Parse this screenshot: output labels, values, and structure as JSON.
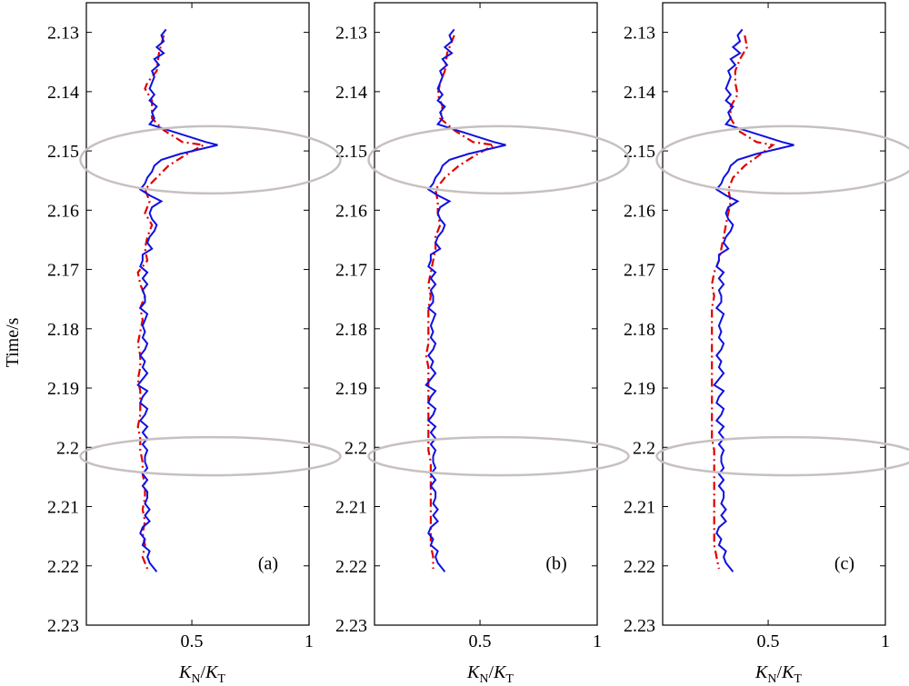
{
  "chart_data": {
    "type": "line",
    "ylabel": "Time/s",
    "xlabel_main": "K",
    "xlabel_num_sub": "N",
    "xlabel_den_sub": "T",
    "ylim": [
      2.125,
      2.23
    ],
    "yticks": [
      "2.13",
      "2.14",
      "2.15",
      "2.16",
      "2.17",
      "2.18",
      "2.19",
      "2.2",
      "2.21",
      "2.22",
      "2.23"
    ],
    "yticks_values": [
      2.13,
      2.14,
      2.15,
      2.16,
      2.17,
      2.18,
      2.19,
      2.2,
      2.21,
      2.22,
      2.23
    ],
    "xlim": [
      0.05,
      1.0
    ],
    "xticks": [
      "0.5",
      "1"
    ],
    "xticks_values": [
      0.5,
      1.0
    ],
    "colors": {
      "blue_series": "#1010e0",
      "red_series": "#e00000",
      "ellipse": "#c8c0c0"
    },
    "panels": [
      {
        "tag": "(a)",
        "blue": {
          "t": [
            2.1295,
            2.1305,
            2.1315,
            2.1325,
            2.1335,
            2.1345,
            2.1355,
            2.1365,
            2.1375,
            2.1385,
            2.1395,
            2.1405,
            2.1415,
            2.1425,
            2.1435,
            2.1445,
            2.1455,
            2.1465,
            2.1475,
            2.1485,
            2.149,
            2.1505,
            2.1515,
            2.1525,
            2.1535,
            2.1545,
            2.1555,
            2.1565,
            2.1575,
            2.1585,
            2.1595,
            2.1605,
            2.1615,
            2.1625,
            2.1635,
            2.1645,
            2.1655,
            2.1665,
            2.1675,
            2.1685,
            2.1695,
            2.1705,
            2.1715,
            2.1725,
            2.1735,
            2.1745,
            2.1755,
            2.1765,
            2.1775,
            2.1785,
            2.1795,
            2.1805,
            2.1815,
            2.1825,
            2.1835,
            2.1845,
            2.1855,
            2.1865,
            2.1875,
            2.1885,
            2.1895,
            2.1905,
            2.1915,
            2.1925,
            2.1935,
            2.1945,
            2.1955,
            2.1965,
            2.1975,
            2.1985,
            2.1995,
            2.2005,
            2.2015,
            2.2025,
            2.2035,
            2.2045,
            2.2055,
            2.2065,
            2.2075,
            2.2085,
            2.2095,
            2.2105,
            2.2115,
            2.2125,
            2.2135,
            2.2145,
            2.2155,
            2.2165,
            2.2175,
            2.2185,
            2.2195,
            2.221
          ],
          "k": [
            0.39,
            0.37,
            0.38,
            0.35,
            0.38,
            0.34,
            0.36,
            0.33,
            0.34,
            0.33,
            0.32,
            0.34,
            0.32,
            0.35,
            0.33,
            0.34,
            0.32,
            0.4,
            0.48,
            0.56,
            0.61,
            0.45,
            0.37,
            0.34,
            0.33,
            0.31,
            0.3,
            0.28,
            0.32,
            0.37,
            0.33,
            0.32,
            0.33,
            0.35,
            0.34,
            0.32,
            0.31,
            0.33,
            0.29,
            0.29,
            0.28,
            0.31,
            0.29,
            0.31,
            0.29,
            0.3,
            0.3,
            0.28,
            0.31,
            0.3,
            0.29,
            0.3,
            0.29,
            0.31,
            0.3,
            0.28,
            0.3,
            0.29,
            0.31,
            0.29,
            0.27,
            0.31,
            0.29,
            0.28,
            0.31,
            0.3,
            0.28,
            0.31,
            0.29,
            0.31,
            0.29,
            0.31,
            0.3,
            0.3,
            0.31,
            0.29,
            0.31,
            0.29,
            0.31,
            0.31,
            0.3,
            0.32,
            0.3,
            0.32,
            0.29,
            0.28,
            0.3,
            0.29,
            0.32,
            0.31,
            0.32,
            0.35
          ]
        },
        "red": {
          "t": [
            2.1305,
            2.1335,
            2.1365,
            2.1385,
            2.1395,
            2.1415,
            2.1445,
            2.1465,
            2.1485,
            2.149,
            2.1505,
            2.1525,
            2.1545,
            2.1565,
            2.1585,
            2.1605,
            2.1625,
            2.1645,
            2.1665,
            2.1685,
            2.1705,
            2.1725,
            2.1745,
            2.1765,
            2.1785,
            2.1805,
            2.1825,
            2.1845,
            2.1865,
            2.1885,
            2.1905,
            2.1925,
            2.1945,
            2.1965,
            2.1985,
            2.2005,
            2.2025,
            2.2045,
            2.2065,
            2.2085,
            2.2105,
            2.2125,
            2.2145,
            2.2165,
            2.2185,
            2.2205
          ],
          "k": [
            0.38,
            0.36,
            0.35,
            0.31,
            0.3,
            0.33,
            0.33,
            0.38,
            0.46,
            0.55,
            0.48,
            0.4,
            0.35,
            0.3,
            0.32,
            0.3,
            0.33,
            0.31,
            0.3,
            0.31,
            0.27,
            0.28,
            0.3,
            0.28,
            0.29,
            0.28,
            0.27,
            0.28,
            0.28,
            0.27,
            0.28,
            0.28,
            0.28,
            0.27,
            0.28,
            0.28,
            0.29,
            0.29,
            0.3,
            0.3,
            0.29,
            0.3,
            0.29,
            0.3,
            0.29,
            0.31
          ]
        }
      },
      {
        "tag": "(b)",
        "blue": {
          "t": [
            2.1295,
            2.1305,
            2.1315,
            2.1325,
            2.1335,
            2.1345,
            2.1355,
            2.1365,
            2.1375,
            2.1385,
            2.1395,
            2.1405,
            2.1415,
            2.1425,
            2.1435,
            2.1445,
            2.1455,
            2.1465,
            2.1475,
            2.1485,
            2.149,
            2.1505,
            2.1515,
            2.1525,
            2.1535,
            2.1545,
            2.1555,
            2.1565,
            2.1575,
            2.1585,
            2.1595,
            2.1605,
            2.1615,
            2.1625,
            2.1635,
            2.1645,
            2.1655,
            2.1665,
            2.1675,
            2.1685,
            2.1695,
            2.1705,
            2.1715,
            2.1725,
            2.1735,
            2.1745,
            2.1755,
            2.1765,
            2.1775,
            2.1785,
            2.1795,
            2.1805,
            2.1815,
            2.1825,
            2.1835,
            2.1845,
            2.1855,
            2.1865,
            2.1875,
            2.1885,
            2.1895,
            2.1905,
            2.1915,
            2.1925,
            2.1935,
            2.1945,
            2.1955,
            2.1965,
            2.1975,
            2.1985,
            2.1995,
            2.2005,
            2.2015,
            2.2025,
            2.2035,
            2.2045,
            2.2055,
            2.2065,
            2.2075,
            2.2085,
            2.2095,
            2.2105,
            2.2115,
            2.2125,
            2.2135,
            2.2145,
            2.2155,
            2.2165,
            2.2175,
            2.2185,
            2.2195,
            2.221
          ],
          "k": [
            0.39,
            0.37,
            0.38,
            0.35,
            0.38,
            0.34,
            0.36,
            0.33,
            0.34,
            0.33,
            0.32,
            0.34,
            0.32,
            0.35,
            0.33,
            0.34,
            0.32,
            0.4,
            0.48,
            0.56,
            0.61,
            0.45,
            0.37,
            0.34,
            0.33,
            0.31,
            0.3,
            0.28,
            0.32,
            0.37,
            0.33,
            0.32,
            0.33,
            0.35,
            0.34,
            0.32,
            0.31,
            0.33,
            0.29,
            0.29,
            0.28,
            0.31,
            0.29,
            0.31,
            0.29,
            0.3,
            0.3,
            0.28,
            0.31,
            0.3,
            0.29,
            0.3,
            0.29,
            0.31,
            0.3,
            0.28,
            0.3,
            0.29,
            0.31,
            0.29,
            0.27,
            0.31,
            0.29,
            0.28,
            0.31,
            0.3,
            0.28,
            0.31,
            0.29,
            0.31,
            0.29,
            0.31,
            0.3,
            0.3,
            0.31,
            0.29,
            0.31,
            0.29,
            0.31,
            0.31,
            0.3,
            0.32,
            0.3,
            0.32,
            0.29,
            0.28,
            0.3,
            0.29,
            0.32,
            0.31,
            0.32,
            0.35
          ]
        },
        "red": {
          "t": [
            2.1305,
            2.1335,
            2.1365,
            2.1385,
            2.1405,
            2.1425,
            2.1445,
            2.1465,
            2.1485,
            2.149,
            2.1505,
            2.1525,
            2.1545,
            2.1565,
            2.1585,
            2.1605,
            2.1625,
            2.1645,
            2.1665,
            2.1685,
            2.1705,
            2.1725,
            2.1745,
            2.1765,
            2.1785,
            2.1805,
            2.1825,
            2.1845,
            2.1865,
            2.1885,
            2.1905,
            2.1925,
            2.1945,
            2.1965,
            2.1985,
            2.2005,
            2.2025,
            2.2045,
            2.2065,
            2.2085,
            2.2105,
            2.2125,
            2.2145,
            2.2165,
            2.2185,
            2.2205
          ],
          "k": [
            0.39,
            0.36,
            0.35,
            0.33,
            0.32,
            0.34,
            0.33,
            0.39,
            0.47,
            0.56,
            0.49,
            0.41,
            0.35,
            0.31,
            0.32,
            0.32,
            0.33,
            0.31,
            0.31,
            0.3,
            0.29,
            0.28,
            0.29,
            0.28,
            0.28,
            0.28,
            0.28,
            0.27,
            0.28,
            0.28,
            0.28,
            0.28,
            0.28,
            0.28,
            0.28,
            0.28,
            0.29,
            0.29,
            0.29,
            0.29,
            0.29,
            0.29,
            0.29,
            0.29,
            0.3,
            0.3
          ]
        }
      },
      {
        "tag": "(c)",
        "blue": {
          "t": [
            2.1295,
            2.1305,
            2.1315,
            2.1325,
            2.1335,
            2.1345,
            2.1355,
            2.1365,
            2.1375,
            2.1385,
            2.1395,
            2.1405,
            2.1415,
            2.1425,
            2.1435,
            2.1445,
            2.1455,
            2.1465,
            2.1475,
            2.1485,
            2.149,
            2.1505,
            2.1515,
            2.1525,
            2.1535,
            2.1545,
            2.1555,
            2.1565,
            2.1575,
            2.1585,
            2.1595,
            2.1605,
            2.1615,
            2.1625,
            2.1635,
            2.1645,
            2.1655,
            2.1665,
            2.1675,
            2.1685,
            2.1695,
            2.1705,
            2.1715,
            2.1725,
            2.1735,
            2.1745,
            2.1755,
            2.1765,
            2.1775,
            2.1785,
            2.1795,
            2.1805,
            2.1815,
            2.1825,
            2.1835,
            2.1845,
            2.1855,
            2.1865,
            2.1875,
            2.1885,
            2.1895,
            2.1905,
            2.1915,
            2.1925,
            2.1935,
            2.1945,
            2.1955,
            2.1965,
            2.1975,
            2.1985,
            2.1995,
            2.2005,
            2.2015,
            2.2025,
            2.2035,
            2.2045,
            2.2055,
            2.2065,
            2.2075,
            2.2085,
            2.2095,
            2.2105,
            2.2115,
            2.2125,
            2.2135,
            2.2145,
            2.2155,
            2.2165,
            2.2175,
            2.2185,
            2.2195,
            2.221
          ],
          "k": [
            0.39,
            0.37,
            0.38,
            0.35,
            0.38,
            0.34,
            0.36,
            0.33,
            0.34,
            0.33,
            0.32,
            0.34,
            0.32,
            0.35,
            0.33,
            0.34,
            0.32,
            0.4,
            0.48,
            0.56,
            0.61,
            0.45,
            0.37,
            0.34,
            0.33,
            0.31,
            0.3,
            0.28,
            0.32,
            0.37,
            0.33,
            0.32,
            0.33,
            0.35,
            0.34,
            0.32,
            0.31,
            0.33,
            0.29,
            0.29,
            0.28,
            0.31,
            0.29,
            0.31,
            0.29,
            0.3,
            0.3,
            0.28,
            0.31,
            0.3,
            0.29,
            0.3,
            0.29,
            0.31,
            0.3,
            0.28,
            0.3,
            0.29,
            0.31,
            0.29,
            0.27,
            0.31,
            0.29,
            0.28,
            0.31,
            0.3,
            0.28,
            0.31,
            0.29,
            0.31,
            0.29,
            0.31,
            0.3,
            0.3,
            0.31,
            0.29,
            0.31,
            0.29,
            0.31,
            0.31,
            0.3,
            0.32,
            0.3,
            0.32,
            0.29,
            0.28,
            0.3,
            0.29,
            0.32,
            0.31,
            0.32,
            0.35
          ]
        },
        "red": {
          "t": [
            2.1305,
            2.1325,
            2.1345,
            2.1365,
            2.1385,
            2.1405,
            2.1425,
            2.1445,
            2.1465,
            2.1485,
            2.149,
            2.1505,
            2.1525,
            2.1545,
            2.1565,
            2.1585,
            2.1605,
            2.1625,
            2.1645,
            2.1665,
            2.1685,
            2.1705,
            2.1725,
            2.1745,
            2.1765,
            2.1785,
            2.1805,
            2.1825,
            2.1845,
            2.1865,
            2.1885,
            2.1905,
            2.1925,
            2.1945,
            2.1965,
            2.1985,
            2.2005,
            2.2025,
            2.2045,
            2.2065,
            2.2085,
            2.2105,
            2.2125,
            2.2145,
            2.2165,
            2.2185,
            2.2205
          ],
          "k": [
            0.4,
            0.41,
            0.38,
            0.36,
            0.36,
            0.37,
            0.34,
            0.34,
            0.37,
            0.45,
            0.52,
            0.47,
            0.4,
            0.35,
            0.33,
            0.34,
            0.33,
            0.32,
            0.31,
            0.3,
            0.29,
            0.27,
            0.26,
            0.27,
            0.26,
            0.26,
            0.26,
            0.26,
            0.26,
            0.26,
            0.26,
            0.26,
            0.26,
            0.26,
            0.26,
            0.26,
            0.27,
            0.27,
            0.27,
            0.27,
            0.27,
            0.27,
            0.27,
            0.27,
            0.27,
            0.28,
            0.29
          ]
        }
      }
    ]
  }
}
